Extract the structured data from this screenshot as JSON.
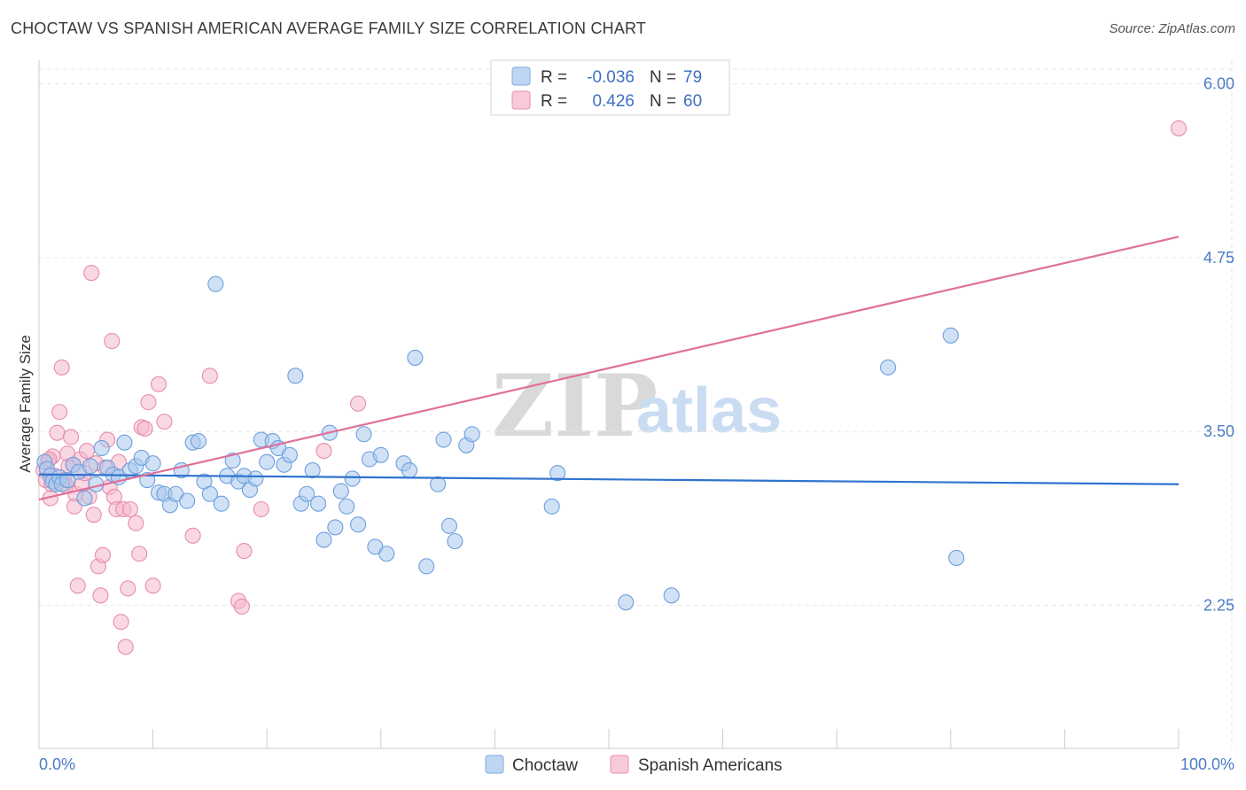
{
  "header": {
    "title": "CHOCTAW VS SPANISH AMERICAN AVERAGE FAMILY SIZE CORRELATION CHART",
    "source": "Source: ZipAtlas.com"
  },
  "watermark": {
    "zip": "ZIP",
    "atlas": "atlas"
  },
  "legend": {
    "r_label": "R =",
    "n_label": "N =",
    "rows": [
      {
        "r": "-0.036",
        "n": "79"
      },
      {
        "r": "0.426",
        "n": "60"
      }
    ]
  },
  "colors": {
    "choctaw_fill": "#a9c8ee",
    "choctaw_line": "#2f73cf",
    "spanish_fill": "#f5b8cb",
    "spanish_line": "#e0709a",
    "grid": "#e6e6e6"
  },
  "chart_data": {
    "type": "scatter",
    "title": "CHOCTAW VS SPANISH AMERICAN AVERAGE FAMILY SIZE CORRELATION CHART",
    "xlabel": "",
    "ylabel": "Average Family Size",
    "xlim": [
      0,
      100
    ],
    "ylim": [
      1.22,
      6.17
    ],
    "x_tick_labels": [
      "0.0%",
      "100.0%"
    ],
    "y_ticks": [
      2.25,
      3.5,
      4.75,
      6.0
    ],
    "y_tick_labels": [
      "2.25",
      "3.50",
      "4.75",
      "6.00"
    ],
    "grid": true,
    "legend_position": "top-center",
    "series": [
      {
        "name": "Choctaw",
        "r": -0.036,
        "n": 79,
        "trend": {
          "x": [
            0,
            100
          ],
          "y": [
            3.19,
            3.12
          ]
        },
        "points": [
          [
            0.5,
            3.28
          ],
          [
            0.7,
            3.23
          ],
          [
            1.0,
            3.18
          ],
          [
            1.2,
            3.14
          ],
          [
            1.5,
            3.12
          ],
          [
            1.8,
            3.17
          ],
          [
            2.0,
            3.12
          ],
          [
            2.5,
            3.15
          ],
          [
            3.0,
            3.26
          ],
          [
            3.5,
            3.21
          ],
          [
            4.0,
            3.02
          ],
          [
            4.5,
            3.25
          ],
          [
            5.0,
            3.12
          ],
          [
            5.5,
            3.38
          ],
          [
            6.0,
            3.24
          ],
          [
            6.5,
            3.19
          ],
          [
            7.0,
            3.17
          ],
          [
            7.5,
            3.42
          ],
          [
            8.0,
            3.22
          ],
          [
            8.5,
            3.25
          ],
          [
            9.0,
            3.31
          ],
          [
            9.5,
            3.15
          ],
          [
            10.0,
            3.27
          ],
          [
            10.5,
            3.06
          ],
          [
            11.0,
            3.05
          ],
          [
            11.5,
            2.97
          ],
          [
            12.0,
            3.05
          ],
          [
            12.5,
            3.22
          ],
          [
            13.0,
            3.0
          ],
          [
            13.5,
            3.42
          ],
          [
            14.0,
            3.43
          ],
          [
            14.5,
            3.14
          ],
          [
            15.0,
            3.05
          ],
          [
            15.5,
            4.56
          ],
          [
            16.0,
            2.98
          ],
          [
            16.5,
            3.18
          ],
          [
            17.0,
            3.29
          ],
          [
            17.5,
            3.14
          ],
          [
            18.0,
            3.18
          ],
          [
            18.5,
            3.08
          ],
          [
            19.0,
            3.16
          ],
          [
            19.5,
            3.44
          ],
          [
            20.0,
            3.28
          ],
          [
            20.5,
            3.43
          ],
          [
            21.0,
            3.38
          ],
          [
            21.5,
            3.26
          ],
          [
            22.0,
            3.33
          ],
          [
            22.5,
            3.9
          ],
          [
            23.0,
            2.98
          ],
          [
            23.5,
            3.05
          ],
          [
            24.0,
            3.22
          ],
          [
            24.5,
            2.98
          ],
          [
            25.0,
            2.72
          ],
          [
            25.5,
            3.49
          ],
          [
            26.0,
            2.81
          ],
          [
            26.5,
            3.07
          ],
          [
            27.0,
            2.96
          ],
          [
            27.5,
            3.16
          ],
          [
            28.0,
            2.83
          ],
          [
            28.5,
            3.48
          ],
          [
            29.0,
            3.3
          ],
          [
            29.5,
            2.67
          ],
          [
            30.0,
            3.33
          ],
          [
            30.5,
            2.62
          ],
          [
            32.0,
            3.27
          ],
          [
            32.5,
            3.22
          ],
          [
            33.0,
            4.03
          ],
          [
            34.0,
            2.53
          ],
          [
            35.0,
            3.12
          ],
          [
            35.5,
            3.44
          ],
          [
            36.0,
            2.82
          ],
          [
            36.5,
            2.71
          ],
          [
            37.5,
            3.4
          ],
          [
            38.0,
            3.48
          ],
          [
            45.0,
            2.96
          ],
          [
            45.5,
            3.2
          ],
          [
            51.5,
            2.27
          ],
          [
            55.5,
            2.32
          ],
          [
            74.5,
            3.96
          ],
          [
            80.0,
            4.19
          ],
          [
            80.5,
            2.59
          ]
        ]
      },
      {
        "name": "Spanish Americans",
        "r": 0.426,
        "n": 60,
        "trend": {
          "x": [
            0,
            100
          ],
          "y": [
            3.01,
            4.9
          ]
        },
        "points": [
          [
            0.4,
            3.22
          ],
          [
            0.6,
            3.15
          ],
          [
            0.8,
            3.29
          ],
          [
            1.0,
            3.02
          ],
          [
            1.2,
            3.32
          ],
          [
            1.4,
            3.18
          ],
          [
            1.6,
            3.49
          ],
          [
            1.8,
            3.64
          ],
          [
            2.0,
            3.96
          ],
          [
            2.2,
            3.15
          ],
          [
            2.4,
            3.11
          ],
          [
            2.6,
            3.25
          ],
          [
            2.8,
            3.46
          ],
          [
            3.0,
            3.26
          ],
          [
            3.2,
            3.05
          ],
          [
            3.4,
            2.39
          ],
          [
            3.6,
            3.3
          ],
          [
            3.8,
            3.12
          ],
          [
            4.0,
            3.2
          ],
          [
            4.2,
            3.36
          ],
          [
            4.4,
            3.03
          ],
          [
            4.6,
            4.64
          ],
          [
            4.8,
            2.9
          ],
          [
            5.0,
            3.27
          ],
          [
            5.2,
            2.53
          ],
          [
            5.4,
            2.32
          ],
          [
            5.6,
            2.61
          ],
          [
            5.8,
            3.24
          ],
          [
            6.0,
            3.44
          ],
          [
            6.2,
            3.1
          ],
          [
            6.4,
            4.15
          ],
          [
            6.6,
            3.03
          ],
          [
            6.8,
            2.94
          ],
          [
            7.0,
            3.28
          ],
          [
            7.2,
            2.13
          ],
          [
            7.4,
            2.94
          ],
          [
            7.6,
            1.95
          ],
          [
            7.8,
            2.37
          ],
          [
            8.0,
            2.94
          ],
          [
            8.5,
            2.84
          ],
          [
            8.8,
            2.62
          ],
          [
            9.0,
            3.53
          ],
          [
            9.3,
            3.52
          ],
          [
            9.6,
            3.71
          ],
          [
            10.0,
            2.39
          ],
          [
            10.5,
            3.84
          ],
          [
            11.0,
            3.57
          ],
          [
            13.5,
            2.75
          ],
          [
            15.0,
            3.9
          ],
          [
            17.5,
            2.28
          ],
          [
            17.8,
            2.24
          ],
          [
            18.0,
            2.64
          ],
          [
            19.5,
            2.94
          ],
          [
            25.0,
            3.36
          ],
          [
            28.0,
            3.7
          ],
          [
            0.9,
            3.3
          ],
          [
            1.1,
            3.12
          ],
          [
            2.5,
            3.34
          ],
          [
            3.1,
            2.96
          ],
          [
            100.0,
            5.68
          ]
        ]
      }
    ]
  },
  "bottom_legend": [
    "Choctaw",
    "Spanish Americans"
  ]
}
